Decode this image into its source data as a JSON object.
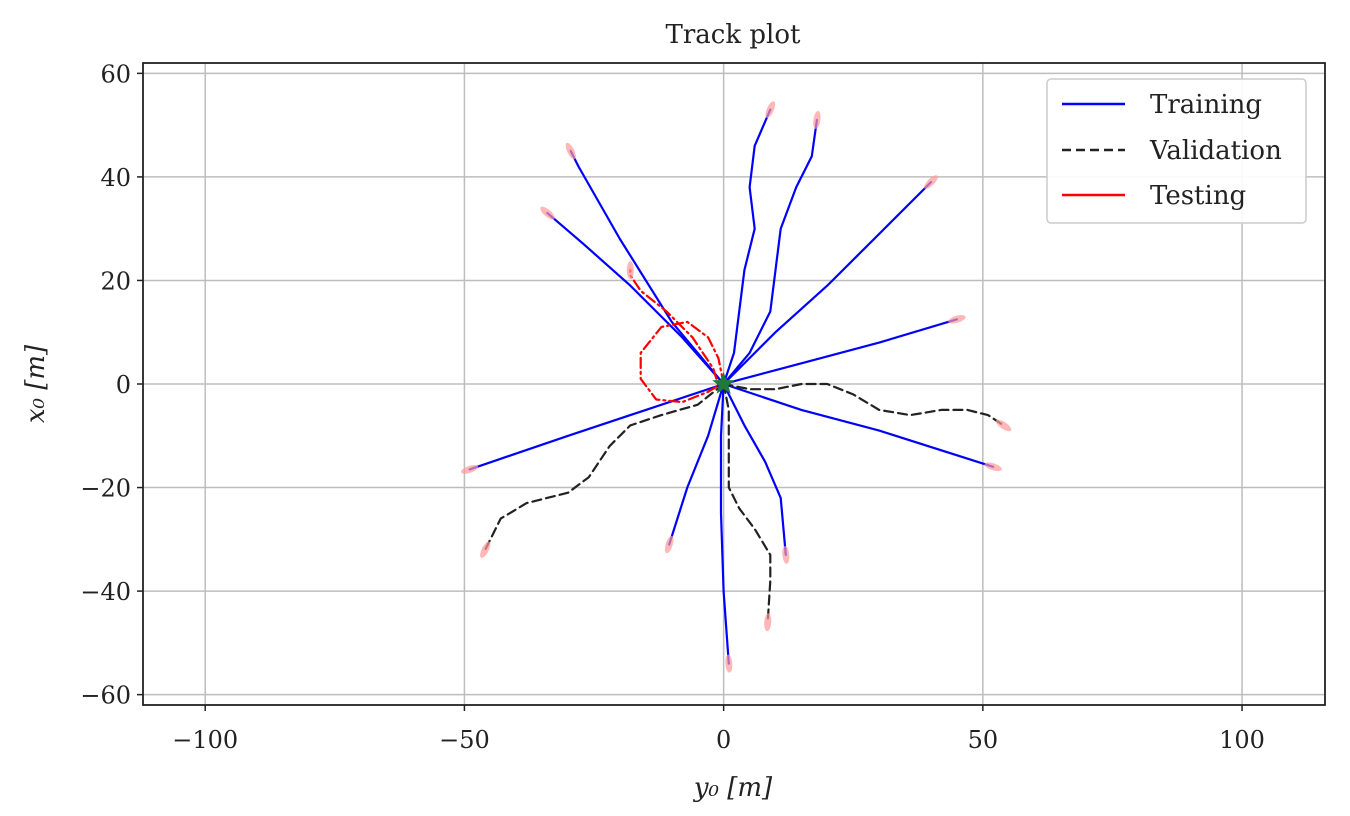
{
  "chart_data": {
    "type": "line",
    "title": "Track plot",
    "xlabel": "y₀ [m]",
    "ylabel": "x₀ [m]",
    "xlim": [
      -112,
      116
    ],
    "ylim": [
      -62,
      62
    ],
    "xticks": [
      -100,
      -50,
      0,
      50,
      100
    ],
    "yticks": [
      -60,
      -40,
      -20,
      0,
      20,
      40,
      60
    ],
    "xtick_labels": [
      "−100",
      "−50",
      "0",
      "50",
      "100"
    ],
    "ytick_labels": [
      "−60",
      "−40",
      "−20",
      "0",
      "20",
      "40",
      "60"
    ],
    "grid": true,
    "legend_position": "top-right",
    "legend": [
      {
        "label": "Training",
        "color": "#0000ff",
        "style": "solid"
      },
      {
        "label": "Validation",
        "color": "#222222",
        "style": "dashed"
      },
      {
        "label": "Testing",
        "color": "#ff0000",
        "style": "solid"
      }
    ],
    "series": [
      {
        "group": "training",
        "color": "#0000ff",
        "dash": "solid",
        "points": [
          [
            0,
            0
          ],
          [
            -10,
            12
          ],
          [
            -20,
            28
          ],
          [
            -28,
            42
          ],
          [
            -29.5,
            45
          ]
        ]
      },
      {
        "group": "training",
        "color": "#0000ff",
        "dash": "solid",
        "points": [
          [
            0,
            0
          ],
          [
            -8,
            9
          ],
          [
            -18,
            19
          ],
          [
            -27,
            27
          ],
          [
            -34,
            33
          ]
        ]
      },
      {
        "group": "training",
        "color": "#0000ff",
        "dash": "solid",
        "points": [
          [
            0,
            0
          ],
          [
            2,
            6
          ],
          [
            3,
            14
          ],
          [
            4,
            22
          ],
          [
            6,
            30
          ],
          [
            5,
            38
          ],
          [
            6,
            46
          ],
          [
            9,
            53
          ]
        ]
      },
      {
        "group": "training",
        "color": "#0000ff",
        "dash": "solid",
        "points": [
          [
            0,
            0
          ],
          [
            5,
            6
          ],
          [
            9,
            14
          ],
          [
            10,
            22
          ],
          [
            11,
            30
          ],
          [
            14,
            38
          ],
          [
            17,
            44
          ],
          [
            18,
            51
          ]
        ]
      },
      {
        "group": "training",
        "color": "#0000ff",
        "dash": "solid",
        "points": [
          [
            0,
            0
          ],
          [
            10,
            10
          ],
          [
            20,
            19
          ],
          [
            30,
            29
          ],
          [
            40,
            39
          ]
        ]
      },
      {
        "group": "training",
        "color": "#0000ff",
        "dash": "solid",
        "points": [
          [
            0,
            0
          ],
          [
            15,
            4
          ],
          [
            30,
            8
          ],
          [
            45,
            12.5
          ]
        ]
      },
      {
        "group": "training",
        "color": "#0000ff",
        "dash": "solid",
        "points": [
          [
            0,
            0
          ],
          [
            15,
            -5
          ],
          [
            30,
            -9
          ],
          [
            52,
            -16
          ]
        ]
      },
      {
        "group": "training",
        "color": "#0000ff",
        "dash": "solid",
        "points": [
          [
            0,
            0
          ],
          [
            -15,
            -5
          ],
          [
            -30,
            -10
          ],
          [
            -49,
            -16.5
          ]
        ]
      },
      {
        "group": "training",
        "color": "#0000ff",
        "dash": "solid",
        "points": [
          [
            0,
            0
          ],
          [
            -3,
            -10
          ],
          [
            -7,
            -20
          ],
          [
            -10.5,
            -31
          ]
        ]
      },
      {
        "group": "training",
        "color": "#0000ff",
        "dash": "solid",
        "points": [
          [
            0,
            0
          ],
          [
            4,
            -8
          ],
          [
            8,
            -15
          ],
          [
            11,
            -22
          ],
          [
            12,
            -33
          ]
        ]
      },
      {
        "group": "training",
        "color": "#0000ff",
        "dash": "solid",
        "points": [
          [
            0,
            0
          ],
          [
            -0.5,
            -10
          ],
          [
            -0.5,
            -25
          ],
          [
            0,
            -40
          ],
          [
            1,
            -54
          ]
        ]
      },
      {
        "group": "validation",
        "color": "#222222",
        "dash": "dashed",
        "points": [
          [
            0,
            0
          ],
          [
            5,
            -1
          ],
          [
            10,
            -1
          ],
          [
            15,
            0
          ],
          [
            20,
            0
          ],
          [
            25,
            -2
          ],
          [
            30,
            -5
          ],
          [
            36,
            -6
          ],
          [
            42,
            -5
          ],
          [
            47,
            -5
          ],
          [
            51,
            -6
          ],
          [
            54,
            -8
          ]
        ]
      },
      {
        "group": "validation",
        "color": "#222222",
        "dash": "dashed",
        "points": [
          [
            0,
            0
          ],
          [
            -5,
            -4
          ],
          [
            -12,
            -6
          ],
          [
            -18,
            -8
          ],
          [
            -22,
            -12
          ],
          [
            -26,
            -18
          ],
          [
            -30,
            -21
          ],
          [
            -38,
            -23
          ],
          [
            -43,
            -26
          ],
          [
            -46,
            -32
          ]
        ]
      },
      {
        "group": "validation",
        "color": "#222222",
        "dash": "dashed",
        "points": [
          [
            0,
            0
          ],
          [
            1,
            -5
          ],
          [
            1,
            -13
          ],
          [
            1,
            -20
          ],
          [
            3,
            -24
          ],
          [
            6,
            -28
          ],
          [
            9,
            -33
          ],
          [
            9,
            -38
          ],
          [
            8.5,
            -46
          ]
        ]
      },
      {
        "group": "testing",
        "color": "#ff0000",
        "dash": "dashdot",
        "points": [
          [
            0,
            0
          ],
          [
            -1,
            5
          ],
          [
            -3,
            9
          ],
          [
            -7,
            12
          ],
          [
            -12,
            11
          ],
          [
            -16,
            6
          ],
          [
            -16,
            1
          ],
          [
            -13,
            -3
          ],
          [
            -8,
            -3.5
          ],
          [
            -3,
            -1.5
          ],
          [
            -1,
            -0.3
          ],
          [
            -2,
            3
          ],
          [
            -6,
            9
          ],
          [
            -11,
            14
          ],
          [
            -16,
            18
          ],
          [
            -18,
            21
          ],
          [
            -18,
            22
          ]
        ]
      }
    ]
  }
}
